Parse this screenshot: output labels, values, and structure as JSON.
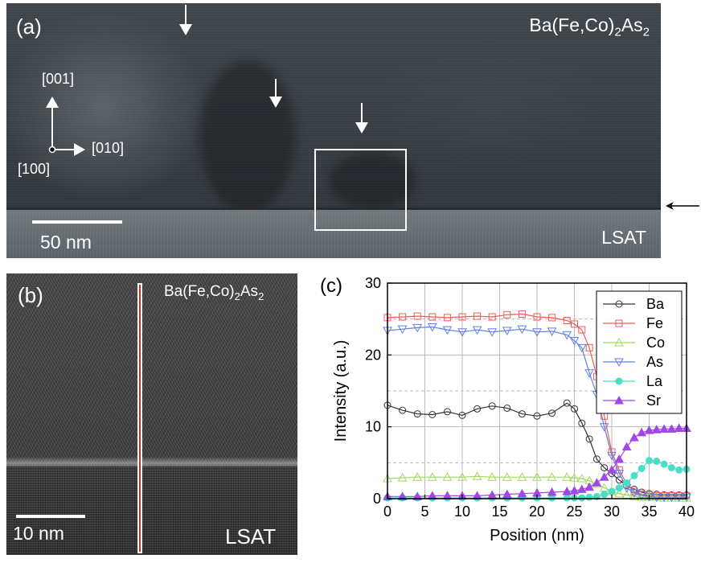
{
  "panel_a": {
    "label": "(a)",
    "film": {
      "main": "Ba(Fe,Co)",
      "sub": "2",
      "tail": "As",
      "sub2": "2"
    },
    "substrate": "LSAT",
    "scale_bar": "50 nm",
    "axes": {
      "up": "[001]",
      "right": "[010]",
      "origin": "[100]"
    }
  },
  "panel_b": {
    "label": "(b)",
    "film": {
      "main": "Ba(Fe,Co)",
      "sub": "2",
      "tail": "As",
      "sub2": "2"
    },
    "substrate": "LSAT",
    "scale_bar": "10 nm"
  },
  "panel_c": {
    "label": "(c)"
  },
  "colors": {
    "Ba": "#333333",
    "Fe": "#ee5d55",
    "Co": "#9ddc5f",
    "As": "#5f80e6",
    "La": "#49dfc6",
    "Sr": "#a246e6"
  },
  "chart_data": {
    "type": "line",
    "xlabel": "Position (nm)",
    "ylabel": "Intensity (a.u.)",
    "xlim": [
      0,
      40
    ],
    "ylim": [
      0,
      30
    ],
    "xticks": [
      0,
      5,
      10,
      15,
      20,
      25,
      30,
      35,
      40
    ],
    "yticks": [
      0,
      10,
      20,
      30
    ],
    "grid": true,
    "legend_position": "top-right",
    "x": [
      0,
      2,
      4,
      6,
      8,
      10,
      12,
      14,
      16,
      18,
      20,
      22,
      24,
      25,
      26,
      27,
      28,
      29,
      30,
      31,
      32,
      33,
      34,
      35,
      36,
      37,
      38,
      39,
      40
    ],
    "series": [
      {
        "name": "Ba",
        "marker": "circle-open",
        "values": [
          13,
          12.3,
          11.8,
          11.7,
          12.1,
          11.6,
          12.5,
          12.9,
          12.6,
          11.8,
          11.5,
          11.9,
          13.3,
          12.5,
          10.5,
          8.3,
          5.5,
          4.3,
          3.5,
          2.6,
          1.8,
          1.3,
          0.9,
          0.7,
          0.6,
          0.5,
          0.5,
          0.5,
          0.5
        ]
      },
      {
        "name": "Fe",
        "marker": "square-open",
        "values": [
          25.2,
          25.3,
          25.4,
          25.3,
          25.2,
          25.3,
          25.4,
          25.3,
          25.6,
          25.7,
          25.3,
          25.2,
          24.8,
          24.3,
          23.5,
          21,
          17,
          11.5,
          6.5,
          4,
          2,
          1,
          0.6,
          0.5,
          0.4,
          0.4,
          0.4,
          0.4,
          0.4
        ]
      },
      {
        "name": "Co",
        "marker": "triangle-up-open",
        "values": [
          2.8,
          2.9,
          3.0,
          3.0,
          3.0,
          3.0,
          3.1,
          3.0,
          3.0,
          3.0,
          3.0,
          3.0,
          3.0,
          2.9,
          2.8,
          2.5,
          2.0,
          1.5,
          1.0,
          0.7,
          0.5,
          0.3,
          0.2,
          0.2,
          0.2,
          0.1,
          0.1,
          0.1,
          0.1
        ]
      },
      {
        "name": "As",
        "marker": "triangle-down-open",
        "values": [
          23.4,
          23.6,
          23.8,
          23.9,
          23.5,
          23.2,
          23.5,
          23.2,
          23.4,
          23.6,
          23.2,
          23.3,
          22.8,
          22.0,
          21.0,
          17.5,
          14.5,
          10,
          6,
          3.5,
          1.5,
          0.8,
          0.5,
          0.3,
          0.2,
          0.2,
          0.2,
          0.2,
          0.2
        ]
      },
      {
        "name": "La",
        "marker": "circle-filled",
        "values": [
          0.1,
          0.1,
          0.1,
          0.1,
          0.1,
          0.1,
          0.1,
          0.1,
          0.1,
          0.1,
          0.1,
          0.1,
          0.1,
          0.1,
          0.1,
          0.2,
          0.3,
          0.6,
          1.0,
          1.5,
          2.2,
          3.2,
          4.2,
          5.3,
          5.2,
          4.8,
          4.3,
          4.0,
          4.1
        ]
      },
      {
        "name": "Sr",
        "marker": "triangle-up-filled",
        "values": [
          0.3,
          0.3,
          0.3,
          0.4,
          0.4,
          0.4,
          0.4,
          0.5,
          0.6,
          0.7,
          0.8,
          0.9,
          1.0,
          1.1,
          1.3,
          1.6,
          2.2,
          3.0,
          4.0,
          5.5,
          7.2,
          8.5,
          9.2,
          9.5,
          9.6,
          9.7,
          9.7,
          9.8,
          9.8
        ]
      }
    ]
  }
}
